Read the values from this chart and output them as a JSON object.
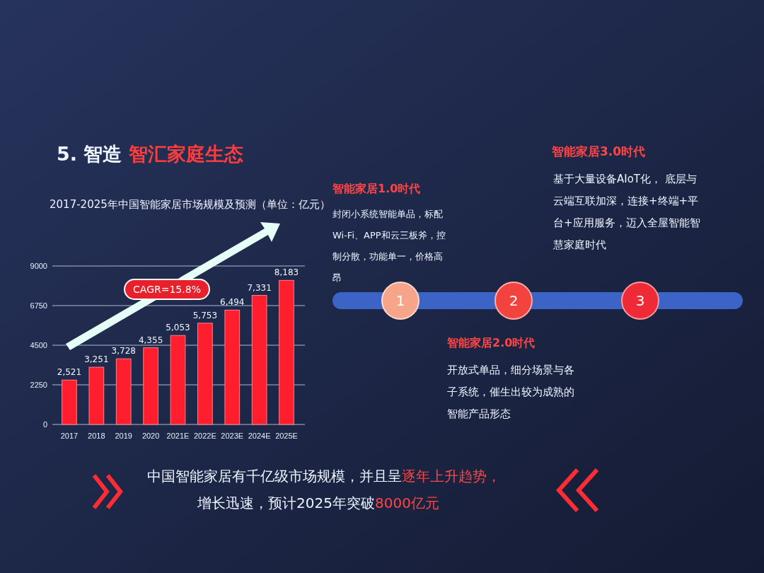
{
  "chart_data": {
    "type": "bar",
    "title": "2017-2025年中国智能家居市场规模及预测（单位：亿元）",
    "categories": [
      "2017",
      "2018",
      "2019",
      "2020",
      "2021E",
      "2022E",
      "2023E",
      "2024E",
      "2025E"
    ],
    "values": [
      2521,
      3251,
      3728,
      4355,
      5053,
      5753,
      6494,
      7331,
      8183
    ],
    "value_labels": [
      "2,521",
      "3,251",
      "3,728",
      "4,355",
      "5,053",
      "5,753",
      "6,494",
      "7,331",
      "8,183"
    ],
    "color": "#ff1e2d",
    "ylim": [
      0,
      9000
    ],
    "yticks": [
      0,
      2250,
      4500,
      6750,
      9000
    ],
    "grid": "y",
    "annotations": [
      "5. 智造",
      "智汇家庭生态",
      "CAGR=15.8%",
      "智能家居1.0时代",
      "封闭小系统智能单品，标配Wi-Fi、APP和云三板斧，控制分散，功能单一，价格高昂",
      "1",
      "2",
      "3",
      "智能家居2.0时代",
      "开放式单品，细分场景与各子系统，催生出较为成熟的智能产品形态",
      "智能家居3.0时代",
      "基于大量设备AIoT化， 底层与云端互联加深，连接+终端+平台+应用服务，迈入全屋智能智慧家庭时代",
      "中国智能家居有千亿级市场规模，并且呈",
      "逐年上升趋势，",
      "增长迅速，预计2025年突破",
      "8000亿元"
    ]
  }
}
